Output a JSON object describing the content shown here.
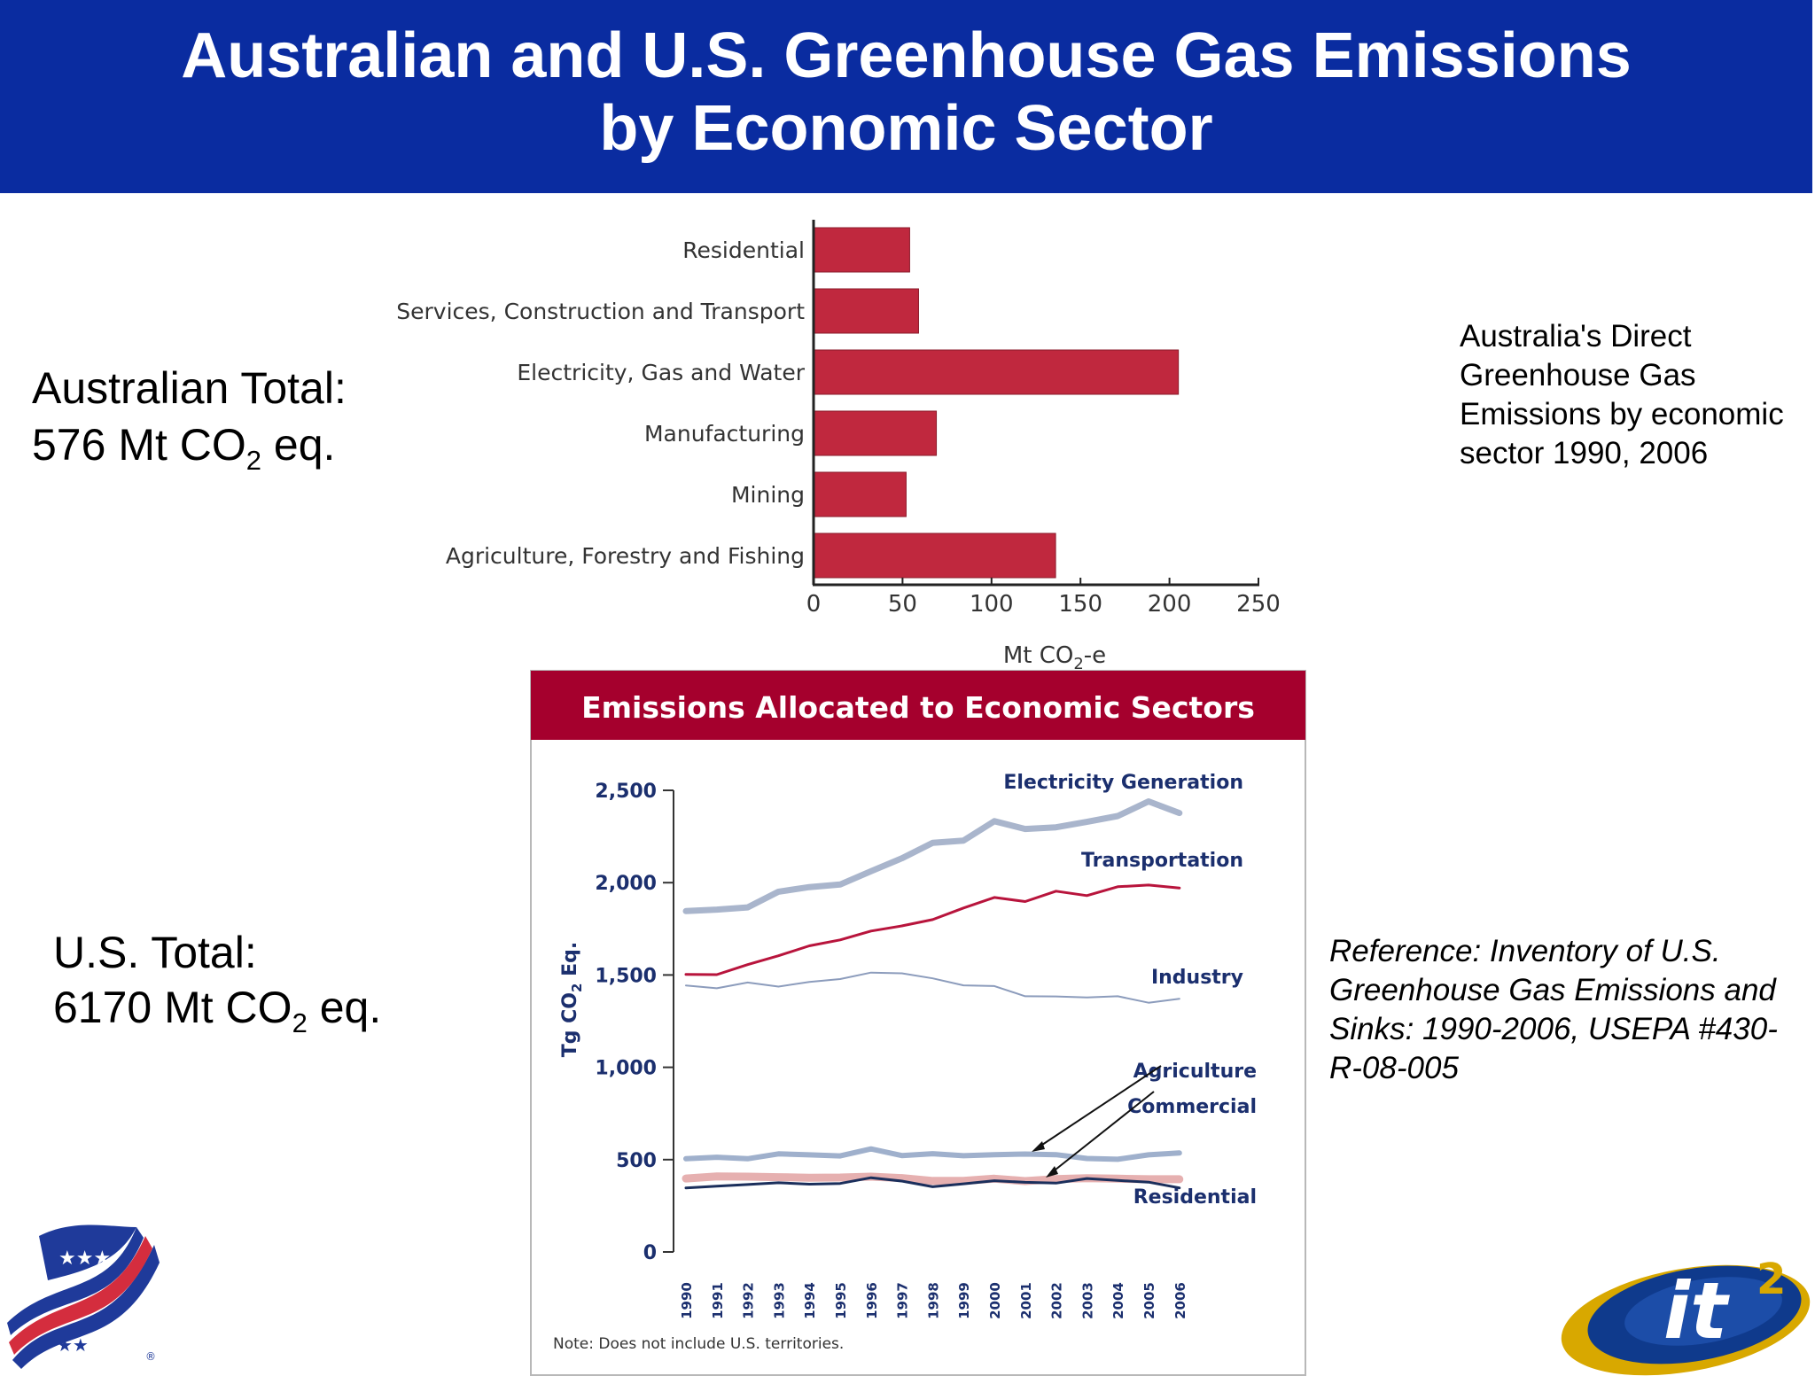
{
  "header": {
    "title_line1": "Australian and U.S. Greenhouse Gas Emissions",
    "title_line2": "by Economic Sector"
  },
  "australia": {
    "total_label": "Australian Total:",
    "total_value": "576 Mt CO",
    "total_sub": "2",
    "total_unit": " eq.",
    "caption": "Australia's Direct Greenhouse Gas Emissions by economic sector 1990, 2006"
  },
  "us": {
    "total_label": "U.S. Total:",
    "total_value": "6170 Mt CO",
    "total_sub": "2",
    "total_unit": " eq.",
    "reference": "Reference: Inventory of U.S. Greenhouse Gas Emissions and Sinks: 1990-2006, USEPA #430-R-08-005"
  },
  "colors": {
    "header_bg": "#0a2ca0",
    "aus_bar": "#c0283e",
    "us_title_bg": "#a5002d",
    "electricity": "#a9b5cc",
    "transportation": "#b8143c",
    "industry": "#8c9cbc",
    "agriculture": "#9fb0cc",
    "commercial": "#e6b0b0",
    "residential": "#1b2f5c",
    "label_blue": "#1b2f6e"
  },
  "logos": {
    "left": "stars-and-stripes-logo",
    "right": "it2-logo",
    "right_text": "it",
    "right_sup": "2"
  },
  "chart_data": [
    {
      "type": "bar",
      "orientation": "horizontal",
      "categories": [
        "Residential",
        "Services, Construction and Transport",
        "Electricity, Gas and Water",
        "Manufacturing",
        "Mining",
        "Agriculture, Forestry and Fishing"
      ],
      "values": [
        54,
        59,
        205,
        69,
        52,
        136
      ],
      "xlabel": "Mt CO",
      "xlabel_sub": "2",
      "xlabel_tail": "-e",
      "xlim": [
        0,
        250
      ],
      "xticks": [
        "0",
        "50",
        "100",
        "150",
        "200",
        "250"
      ],
      "grid": false
    },
    {
      "type": "line",
      "title": "Emissions Allocated to Economic Sectors",
      "ylabel": "Tg CO",
      "ylabel_sub": "2",
      "ylabel_tail": " Eq.",
      "ylim": [
        0,
        2500
      ],
      "yticks": [
        "0",
        "500",
        "1,000",
        "1,500",
        "2,000",
        "2,500"
      ],
      "x": [
        "1990",
        "1991",
        "1992",
        "1993",
        "1994",
        "1995",
        "1996",
        "1997",
        "1998",
        "1999",
        "2000",
        "2001",
        "2002",
        "2003",
        "2004",
        "2005",
        "2006"
      ],
      "series": [
        {
          "name": "Electricity Generation",
          "values": [
            1846,
            1854,
            1866,
            1951,
            1976,
            1990,
            2062,
            2132,
            2216,
            2228,
            2333,
            2291,
            2300,
            2329,
            2361,
            2440,
            2377
          ]
        },
        {
          "name": "Transportation",
          "values": [
            1503,
            1502,
            1556,
            1604,
            1658,
            1690,
            1738,
            1766,
            1800,
            1863,
            1920,
            1898,
            1954,
            1930,
            1978,
            1987,
            1971
          ]
        },
        {
          "name": "Industry",
          "values": [
            1443,
            1428,
            1459,
            1437,
            1462,
            1478,
            1513,
            1509,
            1482,
            1444,
            1440,
            1385,
            1384,
            1378,
            1385,
            1350,
            1371
          ]
        },
        {
          "name": "Agriculture",
          "values": [
            505,
            513,
            505,
            531,
            526,
            520,
            558,
            522,
            532,
            521,
            527,
            530,
            527,
            506,
            502,
            526,
            536
          ]
        },
        {
          "name": "Commercial",
          "values": [
            398,
            409,
            408,
            405,
            402,
            403,
            408,
            400,
            385,
            385,
            397,
            384,
            395,
            399,
            397,
            394,
            394
          ]
        },
        {
          "name": "Residential",
          "values": [
            347,
            356,
            365,
            375,
            367,
            371,
            402,
            384,
            353,
            369,
            386,
            377,
            373,
            398,
            387,
            378,
            347
          ]
        }
      ],
      "note": "Note: Does not include U.S. territories.",
      "grid": false
    }
  ]
}
